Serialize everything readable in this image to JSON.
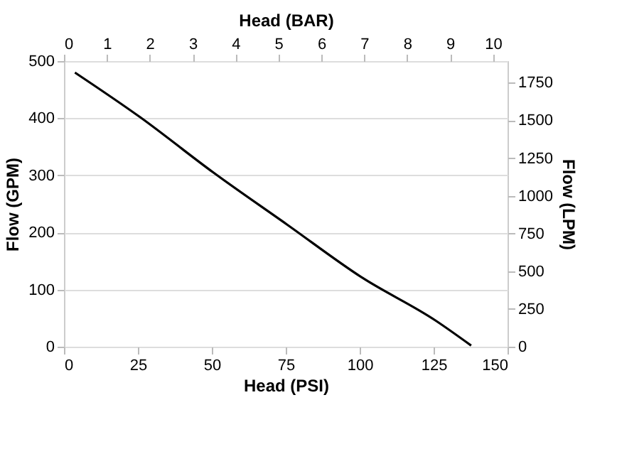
{
  "chart_data": {
    "type": "line",
    "xlabel": "Head (PSI)",
    "ylabel": "Flow (GPM)",
    "x2label": "Head (BAR)",
    "y2label": "Flow (LPM)",
    "x": [
      3.7,
      25.7,
      50.5,
      75.4,
      100.8,
      125.6,
      137.7
    ],
    "series": [
      {
        "color": "#000000",
        "values": [
          480,
          402,
          305,
          214,
          121,
          46,
          2
        ]
      }
    ],
    "xlim": [
      0,
      150
    ],
    "xticks": [
      0,
      25,
      50,
      75,
      100,
      125,
      150
    ],
    "ylim": [
      0,
      500
    ],
    "yticks": [
      0,
      100,
      200,
      300,
      400,
      500
    ],
    "x2lim": [
      0,
      10.34
    ],
    "x2ticks": [
      0,
      1,
      2,
      3,
      4,
      5,
      6,
      7,
      8,
      9,
      10
    ],
    "y2lim": [
      0,
      1893
    ],
    "y2ticks": [
      0,
      250,
      500,
      750,
      1000,
      1250,
      1500,
      1750
    ],
    "grid": "y",
    "marker": "none",
    "line_style": "solid"
  }
}
